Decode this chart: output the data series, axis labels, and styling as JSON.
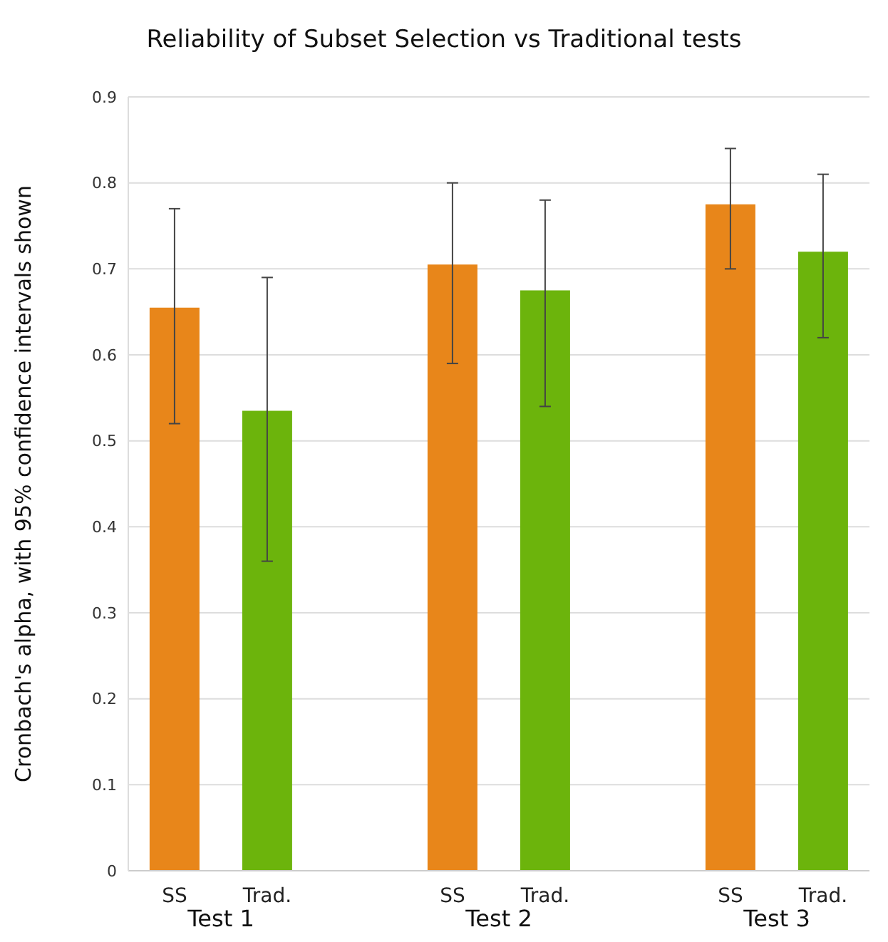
{
  "chart_data": {
    "type": "bar",
    "title": "Reliability of Subset Selection vs Traditional tests",
    "ylabel": "Cronbach's alpha, with 95% confidence intervals shown",
    "categories": [
      "SS",
      "Trad.",
      null,
      "SS",
      "Trad.",
      null,
      "SS",
      "Trad."
    ],
    "values": [
      0.655,
      0.535,
      null,
      0.705,
      0.675,
      null,
      0.775,
      0.72
    ],
    "colors": [
      "#e8861a",
      "#6cb40c",
      null,
      "#e8861a",
      "#6cb40c",
      null,
      "#e8861a",
      "#6cb40c"
    ],
    "errors": [
      [
        0.52,
        0.77
      ],
      [
        0.36,
        0.69
      ],
      null,
      [
        0.59,
        0.8
      ],
      [
        0.54,
        0.78
      ],
      null,
      [
        0.7,
        0.84
      ],
      [
        0.62,
        0.81
      ]
    ],
    "annotations": [
      "Test 1",
      "Test 2",
      "Test 3"
    ],
    "ylim": [
      0,
      0.9
    ],
    "yticks": [
      0,
      0.1,
      0.2,
      0.3,
      0.4,
      0.5,
      0.6,
      0.7,
      0.8,
      0.9
    ],
    "grid": "y"
  }
}
